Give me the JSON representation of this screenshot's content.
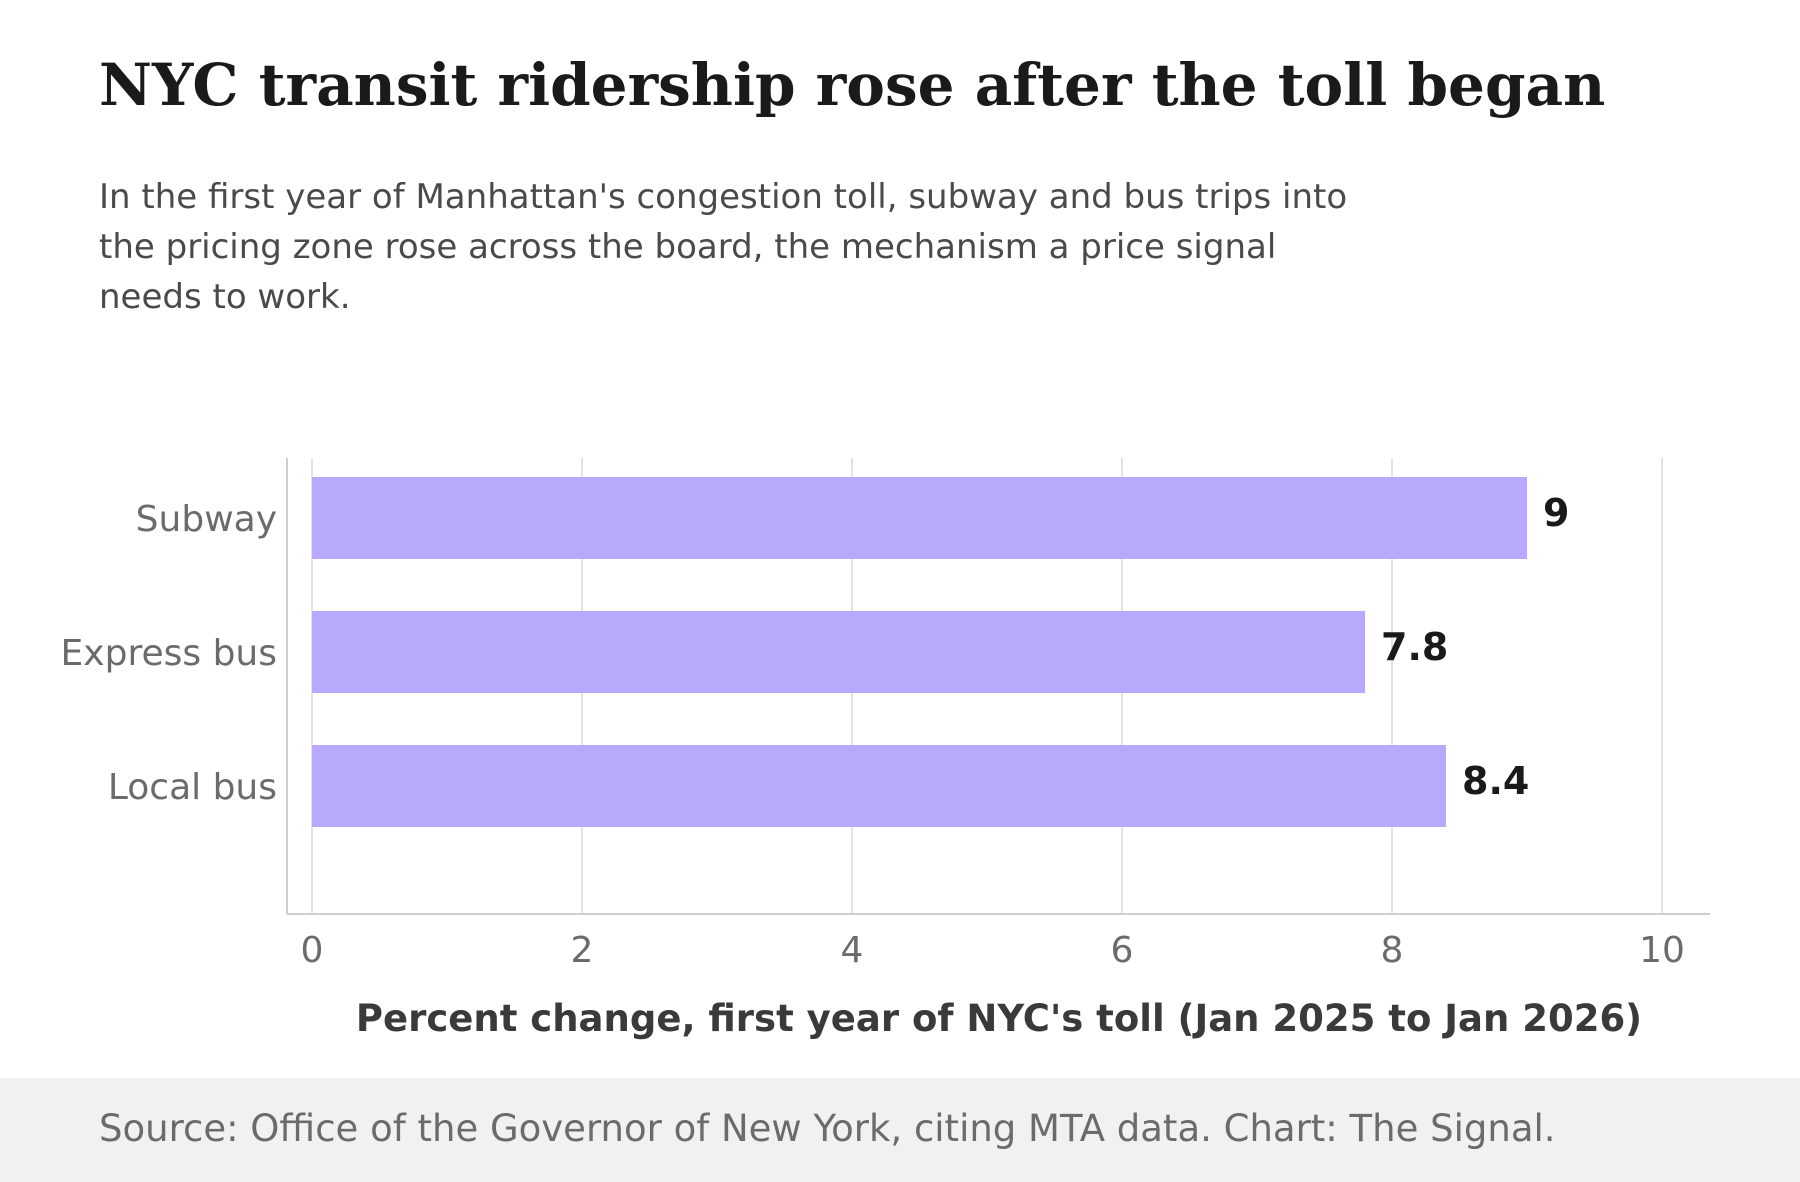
{
  "header": {
    "title": "NYC transit ridership rose after the toll began",
    "subtitle": "In the first year of Manhattan's congestion toll, subway and bus trips into the pricing zone rose across the board, the mechanism a price signal needs to work."
  },
  "footer": {
    "source": "Source: Office of the Governor of New York, citing MTA data. Chart: The Signal."
  },
  "colors": {
    "bar": "#b8a9fd",
    "background": "#ffffff",
    "footer_background": "#f2f1f0"
  },
  "chart_data": {
    "type": "bar",
    "orientation": "horizontal",
    "categories": [
      "Subway",
      "Express bus",
      "Local bus"
    ],
    "values": [
      9,
      7.8,
      8.4
    ],
    "value_labels": [
      "9",
      "7.8",
      "8.4"
    ],
    "xlabel": "Percent change, first year of NYC's toll (Jan 2025 to Jan 2026)",
    "ylabel": "",
    "xlim": [
      0,
      10
    ],
    "xticks": [
      0,
      2,
      4,
      6,
      8,
      10
    ],
    "xtick_labels": [
      "0",
      "2",
      "4",
      "6",
      "8",
      "10"
    ],
    "grid": "vertical",
    "legend": "none"
  }
}
